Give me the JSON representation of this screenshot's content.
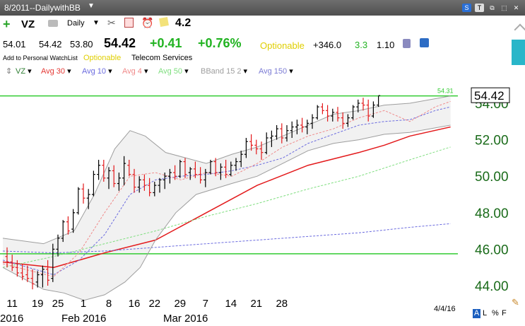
{
  "window": {
    "title": "8/2011--DailywithBB",
    "controls": [
      "S",
      "T",
      "⧉",
      "⬚",
      "✕"
    ]
  },
  "toolbar": {
    "symbol": "VZ",
    "period": "Daily",
    "rating": "4.2",
    "open": "54.01",
    "high": "54.42",
    "low": "53.80",
    "last": "54.42",
    "change": "+0.41",
    "change_pct": "+0.76%",
    "optionable": "Optionable",
    "vol_stat": "+346.0",
    "stat_green": "3.3",
    "stat_black": "1.10",
    "watchlist_link": "Add to Personal WatchList",
    "optionable_small": "Optionable",
    "industry": "Telecom Services"
  },
  "indicators": [
    {
      "label": "VZ",
      "color": "#2e7d32"
    },
    {
      "label": "Avg 30",
      "color": "#e53935"
    },
    {
      "label": "Avg 10",
      "color": "#6b6bdf"
    },
    {
      "label": "Avg 4",
      "color": "#f08a8a"
    },
    {
      "label": "Avg 50",
      "color": "#7fde7f"
    },
    {
      "label": "BBand 15 2",
      "color": "#9e9e9e"
    },
    {
      "label": "Avg 150",
      "color": "#7b7bd4"
    }
  ],
  "footer": {
    "date": "4/4/16",
    "buttons": [
      "A",
      "L",
      "%",
      "F"
    ]
  },
  "colors": {
    "up": "#000000",
    "down": "#e31a1c",
    "hline": "#33cc33",
    "price_axis": "#1a6b1a"
  },
  "chart_data": {
    "type": "ohlc",
    "ylim": [
      43.5,
      55.2
    ],
    "y_ticks": [
      44.0,
      46.0,
      48.0,
      50.0,
      52.0,
      54.0
    ],
    "y_tick_labels": [
      "44.00",
      "46.00",
      "48.00",
      "50.00",
      "52.00",
      "54.00"
    ],
    "x_labels": [
      "11",
      "19",
      "25",
      "1",
      "8",
      "16",
      "22",
      "29",
      "7",
      "14",
      "21",
      "28"
    ],
    "month_labels": [
      "2016",
      "Feb 2016",
      "Mar 2016"
    ],
    "last_price_label": "54.42",
    "high_marker_label": "54.31",
    "hlines": [
      54.4,
      45.75
    ],
    "bars": [
      {
        "date": "01-08",
        "o": 45.6,
        "h": 46.1,
        "l": 45.0,
        "c": 45.3
      },
      {
        "date": "01-11",
        "o": 45.3,
        "h": 45.7,
        "l": 44.8,
        "c": 45.0
      },
      {
        "date": "01-12",
        "o": 45.0,
        "h": 45.4,
        "l": 44.5,
        "c": 44.7
      },
      {
        "date": "01-13",
        "o": 44.7,
        "h": 45.2,
        "l": 44.3,
        "c": 44.5
      },
      {
        "date": "01-14",
        "o": 44.6,
        "h": 45.1,
        "l": 44.2,
        "c": 44.4
      },
      {
        "date": "01-15",
        "o": 44.4,
        "h": 44.9,
        "l": 43.8,
        "c": 44.1
      },
      {
        "date": "01-19",
        "o": 44.2,
        "h": 44.8,
        "l": 43.9,
        "c": 44.6
      },
      {
        "date": "01-20",
        "o": 44.6,
        "h": 45.1,
        "l": 43.9,
        "c": 44.9
      },
      {
        "date": "01-21",
        "o": 44.9,
        "h": 45.4,
        "l": 44.0,
        "c": 44.3
      },
      {
        "date": "01-22",
        "o": 44.4,
        "h": 46.3,
        "l": 44.2,
        "c": 46.0
      },
      {
        "date": "01-25",
        "o": 46.0,
        "h": 46.8,
        "l": 45.6,
        "c": 46.6
      },
      {
        "date": "01-26",
        "o": 46.6,
        "h": 47.6,
        "l": 46.4,
        "c": 47.5
      },
      {
        "date": "01-27",
        "o": 47.5,
        "h": 47.8,
        "l": 46.8,
        "c": 47.0
      },
      {
        "date": "01-28",
        "o": 47.1,
        "h": 48.2,
        "l": 46.9,
        "c": 48.0
      },
      {
        "date": "01-29",
        "o": 48.0,
        "h": 49.4,
        "l": 47.9,
        "c": 49.3
      },
      {
        "date": "02-01",
        "o": 49.3,
        "h": 49.6,
        "l": 48.5,
        "c": 48.8
      },
      {
        "date": "02-02",
        "o": 48.8,
        "h": 49.3,
        "l": 48.2,
        "c": 49.0
      },
      {
        "date": "02-03",
        "o": 49.0,
        "h": 50.3,
        "l": 48.9,
        "c": 50.1
      },
      {
        "date": "02-04",
        "o": 50.1,
        "h": 50.9,
        "l": 49.8,
        "c": 50.6
      },
      {
        "date": "02-05",
        "o": 50.6,
        "h": 50.9,
        "l": 49.7,
        "c": 49.9
      },
      {
        "date": "02-08",
        "o": 49.9,
        "h": 50.5,
        "l": 49.3,
        "c": 50.3
      },
      {
        "date": "02-09",
        "o": 50.3,
        "h": 50.6,
        "l": 49.4,
        "c": 49.6
      },
      {
        "date": "02-10",
        "o": 49.6,
        "h": 50.2,
        "l": 49.2,
        "c": 49.9
      },
      {
        "date": "02-11",
        "o": 49.9,
        "h": 51.1,
        "l": 49.5,
        "c": 50.7
      },
      {
        "date": "02-12",
        "o": 50.6,
        "h": 50.9,
        "l": 50.0,
        "c": 50.1
      },
      {
        "date": "02-16",
        "o": 50.1,
        "h": 50.4,
        "l": 49.1,
        "c": 49.4
      },
      {
        "date": "02-17",
        "o": 49.4,
        "h": 50.0,
        "l": 49.1,
        "c": 49.8
      },
      {
        "date": "02-18",
        "o": 49.8,
        "h": 50.1,
        "l": 49.2,
        "c": 49.5
      },
      {
        "date": "02-19",
        "o": 49.5,
        "h": 49.9,
        "l": 48.9,
        "c": 49.1
      },
      {
        "date": "02-22",
        "o": 49.1,
        "h": 49.7,
        "l": 48.9,
        "c": 49.5
      },
      {
        "date": "02-23",
        "o": 49.5,
        "h": 49.9,
        "l": 49.1,
        "c": 49.8
      },
      {
        "date": "02-24",
        "o": 49.8,
        "h": 50.2,
        "l": 49.3,
        "c": 50.0
      },
      {
        "date": "02-25",
        "o": 50.0,
        "h": 50.4,
        "l": 49.6,
        "c": 50.2
      },
      {
        "date": "02-26",
        "o": 50.2,
        "h": 50.6,
        "l": 49.8,
        "c": 50.0
      },
      {
        "date": "02-29",
        "o": 50.0,
        "h": 50.9,
        "l": 49.9,
        "c": 50.8
      },
      {
        "date": "03-01",
        "o": 50.8,
        "h": 51.0,
        "l": 49.9,
        "c": 50.1
      },
      {
        "date": "03-02",
        "o": 50.2,
        "h": 50.5,
        "l": 49.8,
        "c": 50.4
      },
      {
        "date": "03-03",
        "o": 50.4,
        "h": 50.8,
        "l": 49.9,
        "c": 50.1
      },
      {
        "date": "03-04",
        "o": 50.1,
        "h": 50.5,
        "l": 49.6,
        "c": 49.8
      },
      {
        "date": "03-07",
        "o": 49.8,
        "h": 50.4,
        "l": 49.4,
        "c": 50.2
      },
      {
        "date": "03-08",
        "o": 50.2,
        "h": 50.9,
        "l": 50.1,
        "c": 50.8
      },
      {
        "date": "03-09",
        "o": 50.8,
        "h": 51.0,
        "l": 50.0,
        "c": 50.2
      },
      {
        "date": "03-10",
        "o": 50.2,
        "h": 50.7,
        "l": 49.8,
        "c": 50.5
      },
      {
        "date": "03-11",
        "o": 50.5,
        "h": 50.9,
        "l": 49.9,
        "c": 50.1
      },
      {
        "date": "03-14",
        "o": 50.1,
        "h": 50.8,
        "l": 50.0,
        "c": 50.6
      },
      {
        "date": "03-15",
        "o": 50.6,
        "h": 51.0,
        "l": 50.3,
        "c": 50.8
      },
      {
        "date": "03-16",
        "o": 50.8,
        "h": 51.4,
        "l": 50.5,
        "c": 51.2
      },
      {
        "date": "03-17",
        "o": 51.2,
        "h": 52.1,
        "l": 51.0,
        "c": 51.9
      },
      {
        "date": "03-18",
        "o": 51.9,
        "h": 52.3,
        "l": 51.4,
        "c": 51.7
      },
      {
        "date": "03-21",
        "o": 51.7,
        "h": 52.0,
        "l": 51.2,
        "c": 51.5
      },
      {
        "date": "03-22",
        "o": 51.5,
        "h": 51.9,
        "l": 50.9,
        "c": 51.3
      },
      {
        "date": "03-23",
        "o": 51.3,
        "h": 52.4,
        "l": 51.2,
        "c": 52.1
      },
      {
        "date": "03-24",
        "o": 52.1,
        "h": 52.5,
        "l": 51.6,
        "c": 52.2
      },
      {
        "date": "03-25",
        "o": 52.2,
        "h": 52.8,
        "l": 52.0,
        "c": 52.6
      },
      {
        "date": "03-28",
        "o": 52.6,
        "h": 52.9,
        "l": 51.8,
        "c": 52.1
      },
      {
        "date": "03-29",
        "o": 52.1,
        "h": 52.8,
        "l": 51.9,
        "c": 52.5
      },
      {
        "date": "03-30",
        "o": 52.5,
        "h": 53.0,
        "l": 52.1,
        "c": 52.7
      },
      {
        "date": "03-31",
        "o": 52.7,
        "h": 53.1,
        "l": 52.3,
        "c": 52.8
      },
      {
        "date": "04-01",
        "o": 52.8,
        "h": 53.2,
        "l": 52.4,
        "c": 52.7
      },
      {
        "date": "04-04",
        "o": 52.7,
        "h": 53.1,
        "l": 52.3,
        "c": 52.9
      },
      {
        "date": "04-05",
        "o": 52.9,
        "h": 53.4,
        "l": 52.6,
        "c": 53.2
      },
      {
        "date": "04-06",
        "o": 53.2,
        "h": 53.9,
        "l": 53.1,
        "c": 53.8
      },
      {
        "date": "04-07",
        "o": 53.8,
        "h": 54.0,
        "l": 53.4,
        "c": 53.6
      },
      {
        "date": "04-08",
        "o": 53.6,
        "h": 53.9,
        "l": 53.0,
        "c": 53.3
      },
      {
        "date": "04-11",
        "o": 53.3,
        "h": 53.7,
        "l": 53.0,
        "c": 53.5
      },
      {
        "date": "04-12",
        "o": 53.5,
        "h": 53.8,
        "l": 53.0,
        "c": 53.2
      },
      {
        "date": "04-13",
        "o": 53.2,
        "h": 53.5,
        "l": 52.6,
        "c": 52.9
      },
      {
        "date": "04-14",
        "o": 52.9,
        "h": 53.4,
        "l": 52.7,
        "c": 53.2
      },
      {
        "date": "04-15",
        "o": 53.2,
        "h": 53.9,
        "l": 53.1,
        "c": 53.8
      },
      {
        "date": "04-18",
        "o": 53.8,
        "h": 54.2,
        "l": 53.5,
        "c": 54.0
      },
      {
        "date": "04-19",
        "o": 54.0,
        "h": 54.3,
        "l": 53.6,
        "c": 53.9
      },
      {
        "date": "04-20",
        "o": 53.9,
        "h": 54.2,
        "l": 53.0,
        "c": 53.3
      },
      {
        "date": "04-21",
        "o": 53.3,
        "h": 54.1,
        "l": 53.2,
        "c": 53.9
      },
      {
        "date": "04-22",
        "o": 53.9,
        "h": 54.4,
        "l": 53.8,
        "c": 54.42
      }
    ],
    "series": [
      {
        "name": "Avg 30",
        "style": "solid",
        "color": "#e31a1c",
        "values": [
          [
            0,
            45.3
          ],
          [
            10,
            45.0
          ],
          [
            20,
            45.8
          ],
          [
            30,
            46.5
          ],
          [
            40,
            48.0
          ],
          [
            50,
            49.5
          ],
          [
            60,
            50.6
          ],
          [
            70,
            51.3
          ],
          [
            75,
            51.7
          ],
          [
            80,
            52.2
          ],
          [
            88,
            52.7
          ]
        ]
      },
      {
        "name": "Avg 50",
        "style": "dashed",
        "color": "#7fde7f",
        "values": [
          [
            0,
            45.0
          ],
          [
            10,
            45.6
          ],
          [
            20,
            46.3
          ],
          [
            30,
            47.0
          ],
          [
            40,
            47.8
          ],
          [
            50,
            48.5
          ],
          [
            60,
            49.3
          ],
          [
            70,
            50.0
          ],
          [
            80,
            50.9
          ],
          [
            88,
            51.6
          ]
        ]
      },
      {
        "name": "Avg 150",
        "style": "dashed",
        "color": "#6b6bdf",
        "values": [
          [
            0,
            45.9
          ],
          [
            10,
            45.8
          ],
          [
            20,
            45.9
          ],
          [
            30,
            46.1
          ],
          [
            40,
            46.3
          ],
          [
            50,
            46.5
          ],
          [
            60,
            46.7
          ],
          [
            70,
            46.9
          ],
          [
            80,
            47.2
          ],
          [
            88,
            47.4
          ]
        ]
      },
      {
        "name": "Avg 10",
        "style": "dashed",
        "color": "#6b6bdf",
        "values": [
          [
            0,
            45.4
          ],
          [
            10,
            44.6
          ],
          [
            15,
            45.4
          ],
          [
            20,
            46.8
          ],
          [
            25,
            49.0
          ],
          [
            30,
            49.8
          ],
          [
            35,
            50.0
          ],
          [
            40,
            50.1
          ],
          [
            45,
            50.3
          ],
          [
            50,
            50.6
          ],
          [
            55,
            51.0
          ],
          [
            60,
            51.8
          ],
          [
            65,
            52.3
          ],
          [
            70,
            52.8
          ],
          [
            75,
            53.0
          ],
          [
            80,
            53.1
          ],
          [
            85,
            53.6
          ],
          [
            88,
            53.8
          ]
        ]
      },
      {
        "name": "Avg 4",
        "style": "dashed",
        "color": "#f08a8a",
        "values": [
          [
            0,
            45.2
          ],
          [
            10,
            44.5
          ],
          [
            15,
            45.8
          ],
          [
            20,
            48.0
          ],
          [
            25,
            50.0
          ],
          [
            30,
            50.2
          ],
          [
            35,
            49.8
          ],
          [
            40,
            50.2
          ],
          [
            45,
            50.0
          ],
          [
            50,
            50.7
          ],
          [
            55,
            51.6
          ],
          [
            60,
            52.2
          ],
          [
            65,
            52.6
          ],
          [
            70,
            53.2
          ],
          [
            75,
            53.6
          ],
          [
            80,
            53.0
          ],
          [
            85,
            53.8
          ],
          [
            88,
            54.1
          ]
        ]
      },
      {
        "name": "BBand upper",
        "style": "solid",
        "color": "#9e9e9e",
        "values": [
          [
            0,
            46.6
          ],
          [
            8,
            46.3
          ],
          [
            14,
            47.0
          ],
          [
            18,
            49.0
          ],
          [
            22,
            51.5
          ],
          [
            25,
            52.5
          ],
          [
            28,
            52.2
          ],
          [
            32,
            51.3
          ],
          [
            36,
            51.0
          ],
          [
            40,
            50.7
          ],
          [
            45,
            51.2
          ],
          [
            50,
            51.6
          ],
          [
            55,
            52.2
          ],
          [
            60,
            52.8
          ],
          [
            65,
            53.4
          ],
          [
            70,
            53.6
          ],
          [
            75,
            53.9
          ],
          [
            80,
            54.0
          ],
          [
            88,
            54.4
          ]
        ]
      },
      {
        "name": "BBand lower",
        "style": "solid",
        "color": "#9e9e9e",
        "values": [
          [
            0,
            45.0
          ],
          [
            8,
            43.8
          ],
          [
            12,
            43.6
          ],
          [
            16,
            43.2
          ],
          [
            20,
            43.5
          ],
          [
            24,
            44.2
          ],
          [
            27,
            45.0
          ],
          [
            30,
            46.5
          ],
          [
            34,
            48.0
          ],
          [
            38,
            49.0
          ],
          [
            45,
            49.6
          ],
          [
            50,
            50.0
          ],
          [
            55,
            50.7
          ],
          [
            60,
            51.4
          ],
          [
            65,
            51.8
          ],
          [
            70,
            52.0
          ],
          [
            75,
            52.3
          ],
          [
            80,
            52.4
          ],
          [
            88,
            52.8
          ]
        ]
      }
    ]
  }
}
